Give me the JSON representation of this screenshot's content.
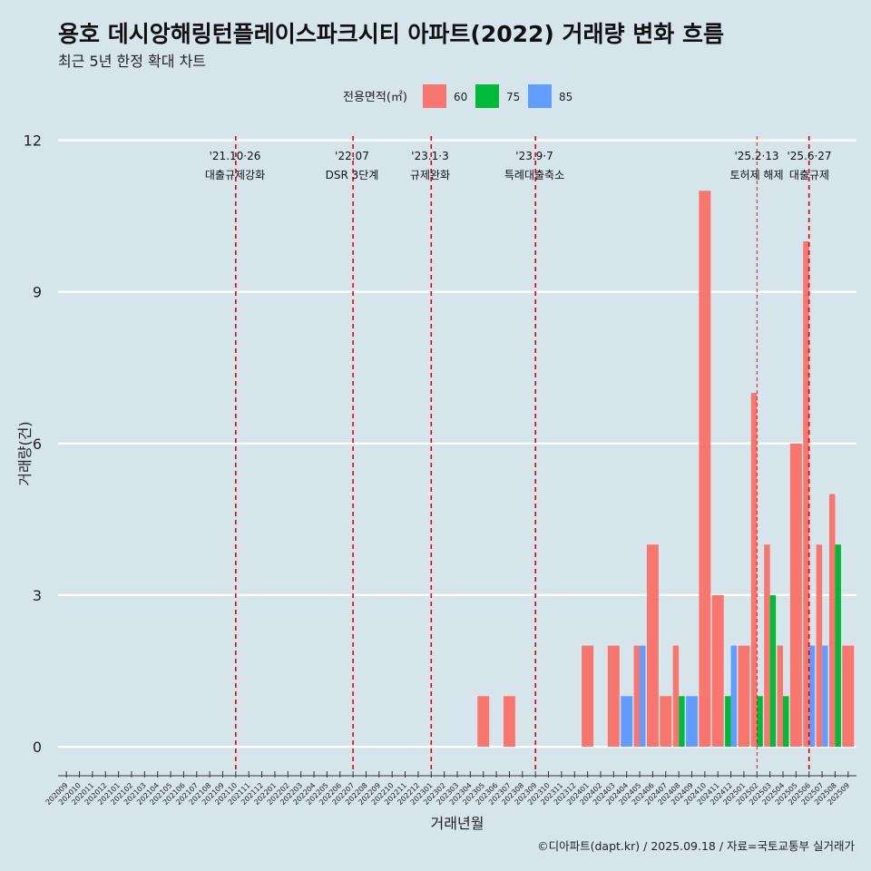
{
  "title": "용호 데시앙해링턴플레이스파크시티 아파트(2022) 거래량 변화 흐름",
  "subtitle": "최근 5년 한정 확대 차트",
  "caption": "©디아파트(dapt.kr) / 2025.09.18 / 자료=국토교통부 실거래가",
  "colors": {
    "background": "#d6e4ec",
    "grid": "#ffffff",
    "event_line": "#ee0000",
    "s60": "#f8766d",
    "s75": "#00ba38",
    "s85": "#619cff"
  },
  "chart_data": {
    "type": "bar",
    "xlabel": "거래년월",
    "ylabel": "거래량(건)",
    "ylim": [
      0,
      12
    ],
    "yticks": [
      0,
      3,
      6,
      9,
      12
    ],
    "grid": "horizontal",
    "legend_title": "전용면적(㎡)",
    "legend_position": "top",
    "categories": [
      "202009",
      "202010",
      "202011",
      "202012",
      "202101",
      "202102",
      "202103",
      "202104",
      "202105",
      "202106",
      "202107",
      "202108",
      "202109",
      "202110",
      "202111",
      "202112",
      "202201",
      "202202",
      "202203",
      "202204",
      "202205",
      "202206",
      "202207",
      "202208",
      "202209",
      "202210",
      "202211",
      "202212",
      "202301",
      "202302",
      "202303",
      "202304",
      "202305",
      "202306",
      "202307",
      "202308",
      "202309",
      "202310",
      "202311",
      "202312",
      "202401",
      "202402",
      "202403",
      "202404",
      "202405",
      "202406",
      "202407",
      "202408",
      "202409",
      "202410",
      "202411",
      "202412",
      "202501",
      "202502",
      "202503",
      "202504",
      "202505",
      "202506",
      "202507",
      "202508",
      "202509"
    ],
    "series": [
      {
        "name": "60",
        "color": "#f8766d",
        "values": [
          0,
          0,
          0,
          0,
          0,
          0,
          0,
          0,
          0,
          0,
          0,
          0,
          0,
          0,
          0,
          0,
          0,
          0,
          0,
          0,
          0,
          0,
          0,
          0,
          0,
          0,
          0,
          0,
          0,
          0,
          0,
          0,
          1,
          0,
          1,
          0,
          0,
          0,
          0,
          0,
          2,
          0,
          2,
          0,
          2,
          4,
          1,
          2,
          0,
          11,
          3,
          0,
          2,
          7,
          4,
          2,
          6,
          10,
          4,
          5,
          2
        ]
      },
      {
        "name": "75",
        "color": "#00ba38",
        "values": [
          0,
          0,
          0,
          0,
          0,
          0,
          0,
          0,
          0,
          0,
          0,
          0,
          0,
          0,
          0,
          0,
          0,
          0,
          0,
          0,
          0,
          0,
          0,
          0,
          0,
          0,
          0,
          0,
          0,
          0,
          0,
          0,
          0,
          0,
          0,
          0,
          0,
          0,
          0,
          0,
          0,
          0,
          0,
          0,
          0,
          0,
          0,
          1,
          0,
          0,
          0,
          1,
          0,
          1,
          3,
          1,
          0,
          0,
          0,
          4,
          0
        ]
      },
      {
        "name": "85",
        "color": "#619cff",
        "values": [
          0,
          0,
          0,
          0,
          0,
          0,
          0,
          0,
          0,
          0,
          0,
          0,
          0,
          0,
          0,
          0,
          0,
          0,
          0,
          0,
          0,
          0,
          0,
          0,
          0,
          0,
          0,
          0,
          0,
          0,
          0,
          0,
          0,
          0,
          0,
          0,
          0,
          0,
          0,
          0,
          0,
          0,
          0,
          1,
          2,
          0,
          0,
          0,
          1,
          0,
          0,
          2,
          0,
          0,
          0,
          0,
          0,
          2,
          2,
          0,
          0
        ]
      }
    ],
    "events": [
      {
        "at": "202110",
        "date": "'21.10·26",
        "label": "대출규제강화",
        "style": "dashed"
      },
      {
        "at": "202207",
        "date": "'22.07",
        "label": "DSR 3단계",
        "style": "dashed"
      },
      {
        "at": "202301",
        "date": "'23.1·3",
        "label": "규제완화",
        "style": "dashed"
      },
      {
        "at": "202309",
        "date": "'23.9·7",
        "label": "특례대출축소",
        "style": "dashed"
      },
      {
        "at": "202502",
        "date": "'25.2·13",
        "label": "토허제 해제",
        "style": "thin"
      },
      {
        "at": "202506",
        "date": "'25.6·27",
        "label": "대출규제",
        "style": "dashed"
      }
    ]
  }
}
